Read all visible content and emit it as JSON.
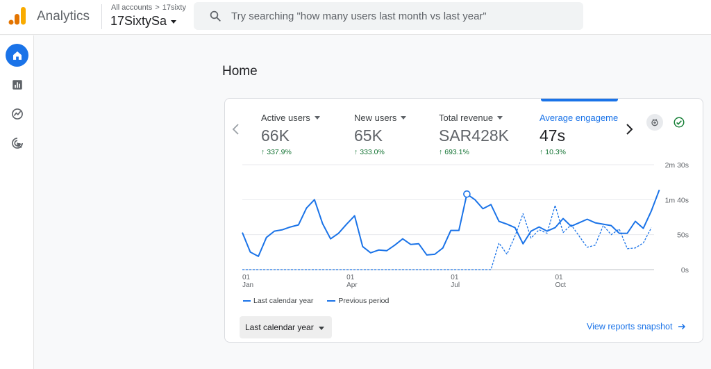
{
  "header": {
    "app_title": "Analytics",
    "breadcrumb": [
      "All accounts",
      "17sixty"
    ],
    "account_name": "17SixtySa",
    "search_placeholder": "Try searching \"how many users last month vs last year\""
  },
  "sidebar": {
    "items": [
      {
        "icon": "home-icon",
        "active": true
      },
      {
        "icon": "reports-icon",
        "active": false
      },
      {
        "icon": "explore-icon",
        "active": false
      },
      {
        "icon": "advertising-icon",
        "active": false
      }
    ]
  },
  "main": {
    "page_title": "Home",
    "metrics": [
      {
        "label": "Active users",
        "value": "66K",
        "change": "337.9%"
      },
      {
        "label": "New users",
        "value": "65K",
        "change": "333.0%"
      },
      {
        "label": "Total revenue",
        "value": "SAR428K",
        "change": "693.1%"
      },
      {
        "label": "Average engagement",
        "value": "47s",
        "change": "10.3%",
        "selected": true
      }
    ],
    "date_range": "Last calendar year",
    "snapshot_link": "View reports snapshot"
  },
  "chart_data": {
    "type": "line",
    "y_tick_labels": [
      "0s",
      "50s",
      "1m 40s",
      "2m 30s"
    ],
    "ylim": [
      0,
      150
    ],
    "x_ticks": [
      {
        "day": "01",
        "month": "Jan",
        "week": 0
      },
      {
        "day": "01",
        "month": "Apr",
        "week": 13
      },
      {
        "day": "01",
        "month": "Jul",
        "week": 26
      },
      {
        "day": "01",
        "month": "Oct",
        "week": 39
      }
    ],
    "legend_position": "bottom-left",
    "grid": true,
    "series": [
      {
        "name": "Last calendar year",
        "style": "solid",
        "color": "#1a73e8",
        "values": [
          53,
          25,
          19,
          46,
          55,
          57,
          61,
          64,
          88,
          100,
          66,
          44,
          52,
          65,
          77,
          33,
          24,
          28,
          27,
          35,
          44,
          36,
          37,
          21,
          22,
          31,
          56,
          56,
          108,
          100,
          87,
          93,
          69,
          65,
          60,
          37,
          55,
          61,
          55,
          60,
          73,
          62,
          67,
          72,
          67,
          65,
          63,
          52,
          52,
          69,
          59,
          84,
          114
        ],
        "highlight_week": 28
      },
      {
        "name": "Previous period",
        "style": "dashed",
        "color": "#1a73e8",
        "values": [
          0,
          0,
          0,
          0,
          0,
          0,
          0,
          0,
          0,
          0,
          0,
          0,
          0,
          0,
          0,
          0,
          0,
          0,
          0,
          0,
          0,
          0,
          0,
          0,
          0,
          0,
          0,
          0,
          0,
          0,
          0,
          0,
          38,
          22,
          48,
          80,
          45,
          57,
          52,
          92,
          53,
          64,
          48,
          32,
          35,
          63,
          50,
          58,
          30,
          31,
          38,
          60
        ]
      }
    ]
  }
}
